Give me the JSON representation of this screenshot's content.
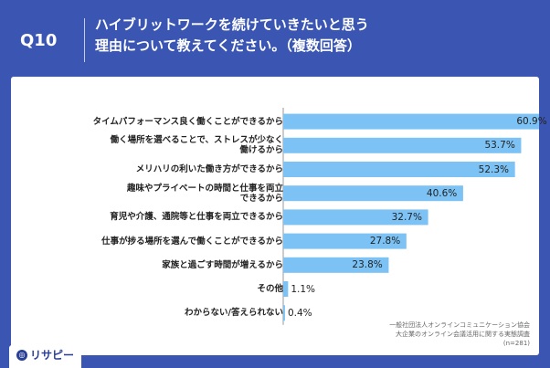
{
  "header": {
    "question_no": "Q10",
    "title_line1": "ハイブリットワークを続けていきたいと思う",
    "title_line2": "理由について教えてください。（複数回答）"
  },
  "chart_data": {
    "type": "bar",
    "orientation": "horizontal",
    "categories": [
      "タイムパフォーマンス良く働くことができるから",
      "働く場所を選べることで、ストレスが少なく働けるから",
      "メリハリの利いた働き方ができるから",
      "趣味やプライベートの時間と仕事を両立できるから",
      "育児や介護、通院等と仕事を両立できるから",
      "仕事が捗る場所を選んで働くことができるから",
      "家族と過ごす時間が増えるから",
      "その他",
      "わからない/答えられない"
    ],
    "category_lines": [
      [
        "タイムパフォーマンス良く働くことができるから"
      ],
      [
        "働く場所を選べることで、ストレスが少なく",
        "働けるから"
      ],
      [
        "メリハリの利いた働き方ができるから"
      ],
      [
        "趣味やプライベートの時間と仕事を両立",
        "できるから"
      ],
      [
        "育児や介護、通院等と仕事を両立できるから"
      ],
      [
        "仕事が捗る場所を選んで働くことができるから"
      ],
      [
        "家族と過ごす時間が増えるから"
      ],
      [
        "その他"
      ],
      [
        "わからない/答えられない"
      ]
    ],
    "values": [
      60.9,
      53.7,
      52.3,
      40.6,
      32.7,
      27.8,
      23.8,
      1.1,
      0.4
    ],
    "value_labels": [
      "60.9%",
      "53.7%",
      "52.3%",
      "40.6%",
      "32.7%",
      "27.8%",
      "23.8%",
      "1.1%",
      "0.4%"
    ],
    "xlim": [
      0,
      100
    ],
    "bar_color": "#7cc2f5",
    "axis_color": "#999999"
  },
  "source": {
    "line1": "一般社団法人オンラインコミュニケーション協会",
    "line2": "大企業のオンライン会議活用に関する実態調査",
    "line3": "(n=281)"
  },
  "brand": {
    "name": "リサピー"
  }
}
